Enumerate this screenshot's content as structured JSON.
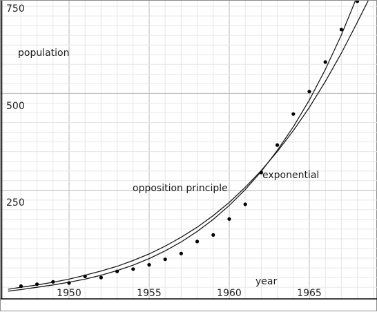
{
  "chart_data": {
    "type": "scatter",
    "title": "",
    "xlabel": "year",
    "ylabel": "population",
    "xlim": [
      1946.2,
      1969.6
    ],
    "ylim": [
      -30,
      750
    ],
    "grid": true,
    "x_ticks": [
      1950,
      1955,
      1960,
      1965
    ],
    "y_ticks": [
      250,
      500,
      750
    ],
    "x_tick_labels": [
      "1950",
      "1955",
      "1960",
      "1965"
    ],
    "y_tick_labels": [
      "250",
      "500",
      "750"
    ],
    "annotations": {
      "opposition": "opposition principle",
      "exponential": "exponential"
    },
    "series": [
      {
        "type": "scatter",
        "x": [
          1947,
          1948,
          1949,
          1950,
          1951,
          1952,
          1953,
          1954,
          1955,
          1956,
          1957,
          1958,
          1959,
          1960,
          1961,
          1962,
          1963,
          1964,
          1965,
          1966,
          1967,
          1968
        ],
        "y": [
          3,
          8,
          14,
          11,
          28,
          25,
          41,
          47,
          58,
          72,
          87,
          118,
          135,
          176,
          214,
          296,
          367,
          447,
          505,
          581,
          665,
          738
        ]
      },
      {
        "type": "line",
        "x": [
          1946.2,
          1947,
          1948,
          1949,
          1950,
          1951,
          1952,
          1953,
          1954,
          1955,
          1956,
          1957,
          1958,
          1959,
          1960,
          1961,
          1962,
          1963,
          1964,
          1965,
          1966,
          1967,
          1968,
          1968.8
        ],
        "y": [
          -5,
          0,
          6,
          13,
          21,
          31,
          42,
          54,
          69,
          86,
          106,
          129,
          155,
          185,
          219,
          258,
          301,
          350,
          404,
          464,
          531,
          604,
          684,
          750
        ]
      },
      {
        "type": "line",
        "x": [
          1946.2,
          1947,
          1948,
          1949,
          1950,
          1951,
          1952,
          1953,
          1954,
          1955,
          1956,
          1957,
          1958,
          1959,
          1960,
          1961,
          1962,
          1963,
          1964,
          1965,
          1966,
          1967,
          1968,
          1969.3
        ],
        "y": [
          -10,
          -6,
          0,
          6,
          13,
          21,
          31,
          43,
          57,
          74,
          94,
          117,
          144,
          175,
          211,
          252,
          299,
          353,
          414,
          483,
          562,
          651,
          752,
          900
        ]
      }
    ]
  }
}
